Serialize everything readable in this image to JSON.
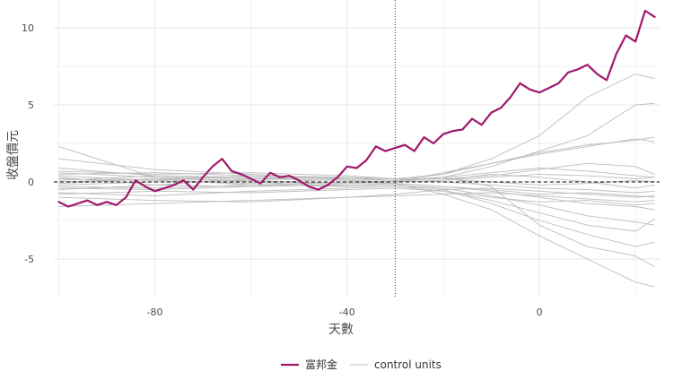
{
  "colors": {
    "treated": "#a0186a",
    "control": "#bdbdbd",
    "grid_major": "#e6e6e6",
    "grid_minor": "#f2f2f2",
    "axis_text": "#4d4d4d",
    "zero_line": "#000000",
    "event_line": "#333333"
  },
  "chart_data": {
    "type": "line",
    "title": "",
    "xlabel": "天數",
    "ylabel": "收盤價元",
    "xlim": [
      -101,
      25
    ],
    "ylim": [
      -7.5,
      11.8
    ],
    "x_ticks": [
      -80,
      -40,
      0
    ],
    "y_ticks": [
      10,
      5,
      0,
      -5
    ],
    "reference_lines": {
      "horizontal_y": 0,
      "vertical_x": -30
    },
    "grid": true,
    "legend": {
      "position": "bottom",
      "entries": [
        {
          "label": "富邦金",
          "color": "#a0186a",
          "style": "thick"
        },
        {
          "label": "control units",
          "color": "#bdbdbd",
          "style": "thin"
        }
      ]
    },
    "treated_series": {
      "name": "富邦金",
      "x": [
        -100,
        -98,
        -96,
        -94,
        -92,
        -90,
        -88,
        -86,
        -84,
        -82,
        -80,
        -78,
        -76,
        -74,
        -72,
        -70,
        -68,
        -66,
        -64,
        -62,
        -60,
        -58,
        -56,
        -54,
        -52,
        -50,
        -48,
        -46,
        -44,
        -42,
        -40,
        -38,
        -36,
        -34,
        -32,
        -30,
        -28,
        -26,
        -24,
        -22,
        -20,
        -18,
        -16,
        -14,
        -12,
        -10,
        -8,
        -6,
        -4,
        -2,
        0,
        2,
        4,
        6,
        8,
        10,
        12,
        14,
        16,
        18,
        20,
        22,
        24
      ],
      "y": [
        -1.3,
        -1.6,
        -1.4,
        -1.2,
        -1.5,
        -1.3,
        -1.5,
        -1.0,
        0.1,
        -0.3,
        -0.6,
        -0.4,
        -0.2,
        0.1,
        -0.5,
        0.3,
        1.0,
        1.5,
        0.7,
        0.5,
        0.2,
        -0.1,
        0.6,
        0.3,
        0.4,
        0.1,
        -0.3,
        -0.5,
        -0.2,
        0.3,
        1.0,
        0.9,
        1.4,
        2.3,
        2.0,
        2.2,
        2.4,
        2.0,
        2.9,
        2.5,
        3.1,
        3.3,
        3.4,
        4.1,
        3.7,
        4.5,
        4.8,
        5.5,
        6.4,
        6.0,
        5.8,
        6.1,
        6.4,
        7.1,
        7.3,
        7.6,
        7.0,
        6.6,
        8.3,
        9.5,
        9.1,
        11.1,
        10.7
      ]
    },
    "control_series": [
      {
        "x": [
          -100,
          -80,
          -60,
          -40,
          -30,
          -20,
          -10,
          0,
          10,
          20,
          24
        ],
        "y": [
          2.3,
          0.3,
          0.2,
          0.1,
          0.0,
          0.3,
          -0.3,
          -2.8,
          -4.2,
          -4.8,
          -5.5
        ]
      },
      {
        "x": [
          -100,
          -80,
          -60,
          -40,
          -30,
          -20,
          -10,
          0,
          10,
          20,
          24
        ],
        "y": [
          1.5,
          0.8,
          0.5,
          0.2,
          0.1,
          0.5,
          1.5,
          3.0,
          5.5,
          7.0,
          6.7
        ]
      },
      {
        "x": [
          -100,
          -80,
          -60,
          -40,
          -30,
          -20,
          -10,
          0,
          10,
          20,
          24
        ],
        "y": [
          0.5,
          0.6,
          0.4,
          0.2,
          0.1,
          0.3,
          1.0,
          2.0,
          3.0,
          5.0,
          5.1
        ]
      },
      {
        "x": [
          -100,
          -80,
          -60,
          -40,
          -30,
          -20,
          -10,
          0,
          10,
          20,
          24
        ],
        "y": [
          -0.4,
          -0.5,
          -0.3,
          -0.2,
          -0.1,
          -0.8,
          -1.8,
          -3.5,
          -5.0,
          -6.5,
          -6.8
        ]
      },
      {
        "x": [
          -100,
          -80,
          -60,
          -40,
          -30,
          -20,
          -10,
          0,
          10,
          20,
          24
        ],
        "y": [
          0.0,
          0.2,
          0.1,
          -0.1,
          0.0,
          0.6,
          1.2,
          1.8,
          2.3,
          2.8,
          2.6
        ]
      },
      {
        "x": [
          -100,
          -80,
          -60,
          -40,
          -30,
          -20,
          -10,
          0,
          10,
          20,
          24
        ],
        "y": [
          -0.7,
          -0.9,
          -0.6,
          -0.4,
          -0.3,
          -0.6,
          -1.2,
          -2.0,
          -2.8,
          -3.2,
          -2.4
        ]
      },
      {
        "x": [
          -100,
          -80,
          -60,
          -40,
          -30,
          -20,
          -10,
          0,
          10,
          20,
          24
        ],
        "y": [
          0.9,
          0.4,
          0.2,
          0.3,
          0.1,
          0.2,
          0.4,
          0.8,
          1.2,
          1.0,
          0.5
        ]
      },
      {
        "x": [
          -100,
          -80,
          -60,
          -40,
          -30,
          -20,
          -10,
          0,
          10,
          20,
          24
        ],
        "y": [
          -0.2,
          0.0,
          0.1,
          -0.2,
          -0.1,
          -0.3,
          -0.6,
          -1.0,
          -1.4,
          -1.6,
          -1.8
        ]
      },
      {
        "x": [
          -100,
          -80,
          -60,
          -40,
          -30,
          -20,
          -10,
          0,
          10,
          20,
          24
        ],
        "y": [
          0.3,
          -0.2,
          -0.3,
          0.0,
          0.0,
          0.1,
          0.3,
          0.5,
          0.4,
          0.2,
          0.3
        ]
      },
      {
        "x": [
          -100,
          -80,
          -60,
          -40,
          -30,
          -20,
          -10,
          0,
          10,
          20,
          24
        ],
        "y": [
          -1.0,
          -1.2,
          -1.3,
          -1.0,
          -0.8,
          -0.5,
          -0.4,
          -0.6,
          -0.8,
          -1.0,
          -0.9
        ]
      },
      {
        "x": [
          -100,
          -80,
          -60,
          -40,
          -30,
          -20,
          -10,
          0,
          10,
          20,
          24
        ],
        "y": [
          0.6,
          0.3,
          0.0,
          -0.3,
          -0.2,
          -0.4,
          -0.9,
          -1.5,
          -2.2,
          -2.6,
          -2.8
        ]
      },
      {
        "x": [
          -100,
          -80,
          -60,
          -40,
          -30,
          -20,
          -10,
          0,
          10,
          20,
          24
        ],
        "y": [
          -0.5,
          -0.2,
          0.2,
          0.1,
          0.0,
          0.1,
          0.5,
          0.3,
          0.0,
          -0.4,
          -0.2
        ]
      },
      {
        "x": [
          -100,
          -80,
          -60,
          -40,
          -30,
          -20,
          -10,
          0,
          10,
          20,
          24
        ],
        "y": [
          0.1,
          0.4,
          0.3,
          0.2,
          0.1,
          0.0,
          -0.2,
          -0.4,
          -0.5,
          -0.7,
          -0.6
        ]
      },
      {
        "x": [
          -100,
          -80,
          -60,
          -40,
          -30,
          -20,
          -10,
          0,
          10,
          20,
          24
        ],
        "y": [
          -1.6,
          -1.4,
          -1.2,
          -1.0,
          -0.9,
          -0.8,
          -0.7,
          -0.9,
          -1.1,
          -1.3,
          -1.2
        ]
      },
      {
        "x": [
          -100,
          -80,
          -60,
          -40,
          -30,
          -20,
          -10,
          0,
          10,
          20,
          24
        ],
        "y": [
          0.4,
          0.1,
          -0.1,
          0.2,
          0.1,
          0.3,
          0.6,
          0.9,
          0.7,
          0.4,
          0.3
        ]
      },
      {
        "x": [
          -100,
          -80,
          -60,
          -40,
          -30,
          -20,
          -10,
          0,
          10,
          20,
          24
        ],
        "y": [
          -0.3,
          -0.4,
          -0.2,
          -0.3,
          -0.2,
          -0.5,
          -1.4,
          -2.5,
          -3.4,
          -4.2,
          -3.9
        ]
      },
      {
        "x": [
          -100,
          -80,
          -60,
          -40,
          -30,
          -20,
          -10,
          0,
          10,
          20,
          24
        ],
        "y": [
          0.2,
          0.1,
          0.4,
          0.3,
          0.2,
          0.2,
          0.0,
          -0.2,
          -0.1,
          0.1,
          0.0
        ]
      },
      {
        "x": [
          -100,
          -80,
          -60,
          -40,
          -30,
          -20,
          -10,
          0,
          10,
          20,
          24
        ],
        "y": [
          -0.8,
          -0.6,
          -0.7,
          -0.5,
          -0.4,
          -0.6,
          -1.0,
          -1.3,
          -1.2,
          -1.5,
          -1.4
        ]
      },
      {
        "x": [
          -100,
          -80,
          -60,
          -40,
          -30,
          -20,
          -10,
          0,
          10,
          20,
          24
        ],
        "y": [
          0.7,
          0.5,
          0.6,
          0.4,
          0.2,
          0.5,
          1.2,
          1.9,
          2.4,
          2.7,
          2.9
        ]
      },
      {
        "x": [
          -100,
          -80,
          -60,
          -40,
          -30,
          -20,
          -10,
          0,
          10,
          20,
          24
        ],
        "y": [
          -0.1,
          0.2,
          -0.2,
          0.0,
          -0.1,
          -0.3,
          -0.5,
          -0.8,
          -0.7,
          -0.9,
          -1.0
        ]
      }
    ]
  }
}
